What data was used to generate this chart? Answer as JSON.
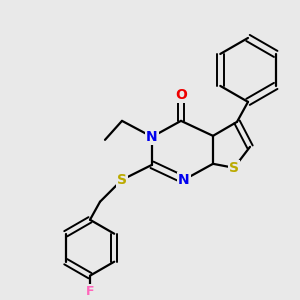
{
  "background_color": "#e9e9e9",
  "bond_color": "#000000",
  "atom_colors": {
    "N": "#0000ee",
    "O": "#ee0000",
    "S": "#bbaa00",
    "F": "#ff66bb",
    "C": "#000000"
  }
}
